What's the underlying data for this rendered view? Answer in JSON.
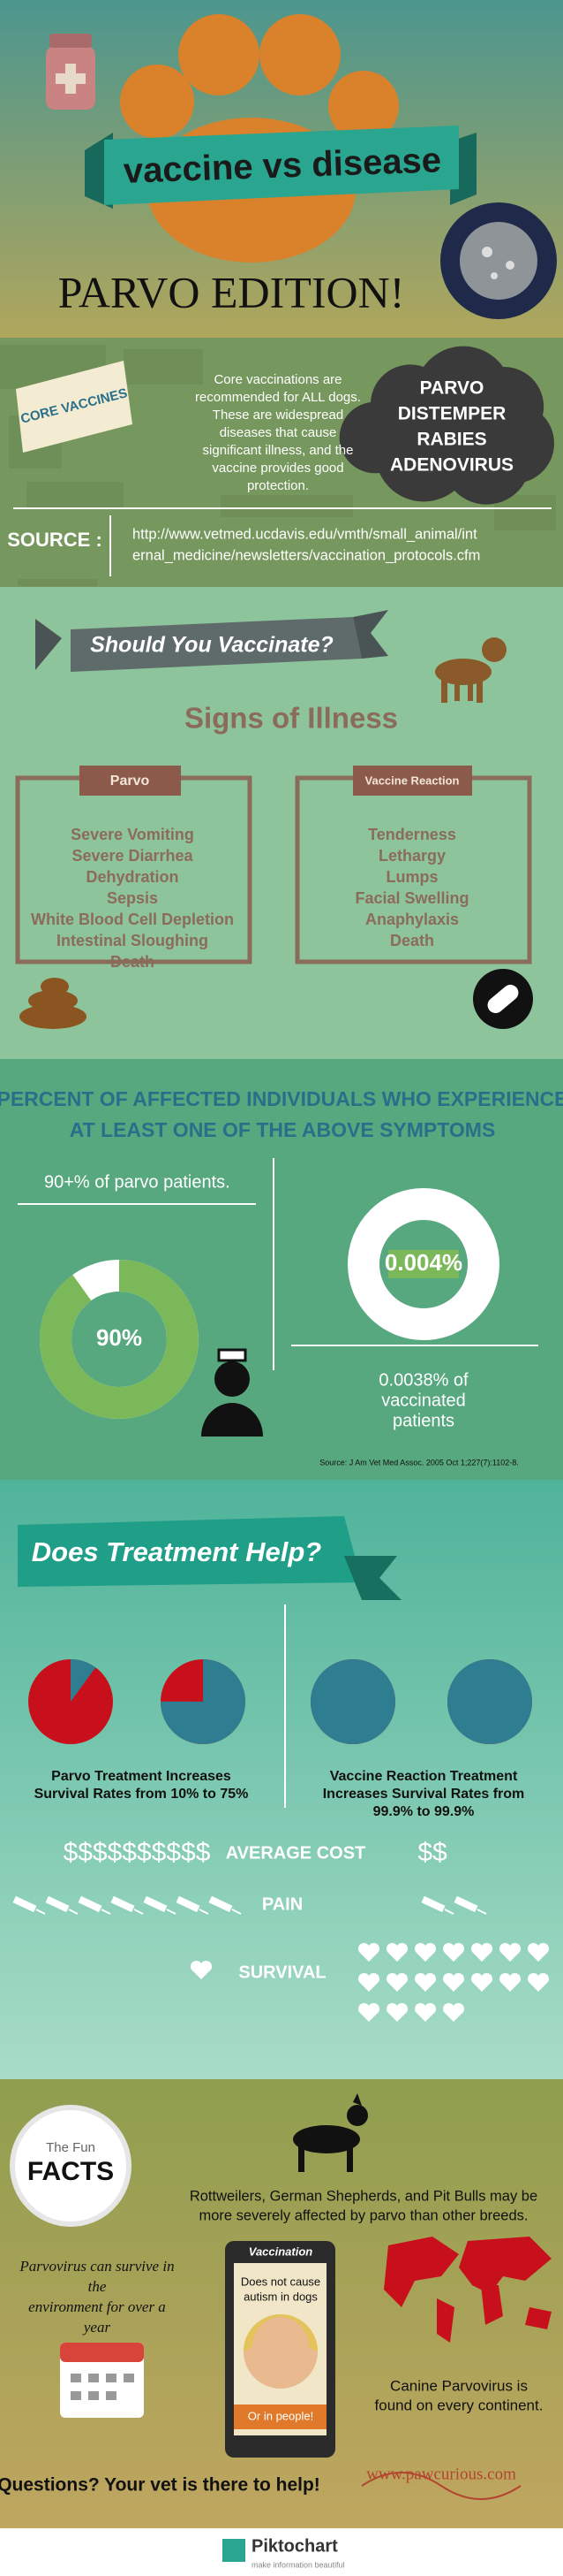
{
  "header": {
    "title": "vaccine vs disease",
    "subtitle": "PARVO EDITION!"
  },
  "core_vaccines": {
    "label": "CORE VACCINES",
    "description": [
      "Core vaccinations are",
      "recommended for ALL dogs.",
      "These are widespread",
      "diseases that cause",
      "significant illness, and the",
      "vaccine provides good",
      "protection."
    ],
    "vaccines": [
      "PARVO",
      "DISTEMPER",
      "RABIES",
      "ADENOVIRUS"
    ],
    "source_label": "SOURCE :",
    "source_url": [
      "http://www.vetmed.ucdavis.edu/vmth/small_animal/int",
      "ernal_medicine/newsletters/vaccination_protocols.cfm"
    ]
  },
  "signs": {
    "banner": "Should You Vaccinate?",
    "title": "Signs of Illness",
    "parvo": {
      "heading": "Parvo",
      "items": [
        "Severe Vomiting",
        "Severe Diarrhea",
        "Dehydration",
        "Sepsis",
        "White Blood Cell Depletion",
        "Intestinal Sloughing",
        "Death"
      ]
    },
    "vaccine_reaction": {
      "heading": "Vaccine Reaction",
      "items": [
        "Tenderness",
        "Lethargy",
        "Lumps",
        "Facial Swelling",
        "Anaphylaxis",
        "Death"
      ]
    }
  },
  "percent": {
    "title": [
      "PERCENT OF AFFECTED INDIVIDUALS WHO EXPERIENCE",
      "AT LEAST ONE OF THE ABOVE SYMPTOMS"
    ],
    "parvo_note": "90+% of parvo patients.",
    "donuts": [
      {
        "value": 90,
        "label": "90%",
        "color": "#7ab85a"
      },
      {
        "value": 0.004,
        "label": "0.004%",
        "color": "#7ab85a"
      }
    ],
    "vaccine_note": [
      "0.0038% of",
      "vaccinated",
      "patients"
    ],
    "source": "Source: J Am Vet Med Assoc. 2005 Oct 1;227(7):1102-8."
  },
  "treatment": {
    "banner": "Does Treatment Help?",
    "survival_color": "#2e7d91",
    "mortality_color": "#c8101c",
    "pies": [
      10,
      75,
      99.9,
      99.9
    ],
    "parvo_caption": [
      "Parvo Treatment Increases",
      "Survival Rates from 10% to 75%"
    ],
    "vaccine_caption": [
      "Vaccine Reaction Treatment",
      "Increases Survival Rates from",
      "99.9% to 99.9%"
    ],
    "cost_label": "AVERAGE COST",
    "cost_parvo": "$$$$$$$$$$",
    "cost_vaccine": "$$",
    "pain_label": "PAIN",
    "pain_icons": [
      7,
      2
    ],
    "survival_label": "SURVIVAL",
    "survival_icons": [
      1,
      18
    ]
  },
  "facts": {
    "badge_top": "The Fun",
    "badge_bottom": "FACTS",
    "breeds": [
      "Rottweilers, German Shepherds, and Pit Bulls may be",
      "more severely affected by parvo than other breeds."
    ],
    "environment": [
      "Parvovirus can survive in",
      "the",
      "environment for over a",
      "year"
    ],
    "phone_title": "Vaccination",
    "phone_text": [
      "Does not cause",
      "autism in dogs"
    ],
    "phone_footer": "Or in people!",
    "continents": [
      "Canine Parvovirus is",
      "found on every continent."
    ],
    "questions": "Questions? Your vet is there to help!",
    "website": "www.pawcurious.com"
  },
  "footer": {
    "brand": "Piktochart",
    "tagline": "make information beautiful"
  }
}
